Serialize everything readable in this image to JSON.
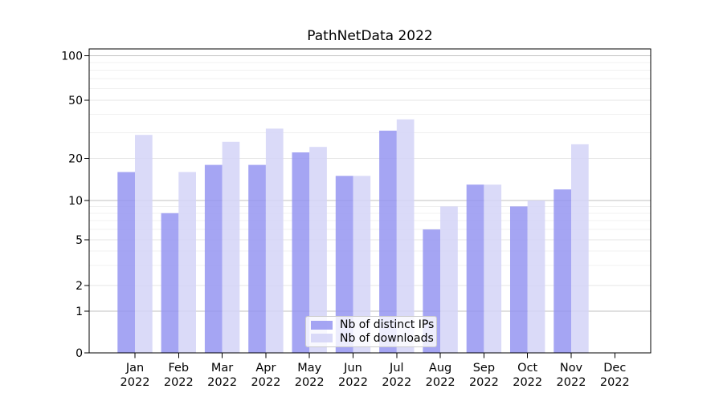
{
  "figure": {
    "title": "PathNetData 2022"
  },
  "chart_data": {
    "type": "bar",
    "title": "PathNetData 2022",
    "months": [
      "Jan",
      "Feb",
      "Mar",
      "Apr",
      "May",
      "Jun",
      "Jul",
      "Aug",
      "Sep",
      "Oct",
      "Nov",
      "Dec"
    ],
    "year_label": "2022",
    "categories": [
      "Jan 2022",
      "Feb 2022",
      "Mar 2022",
      "Apr 2022",
      "May 2022",
      "Jun 2022",
      "Jul 2022",
      "Aug 2022",
      "Sep 2022",
      "Oct 2022",
      "Nov 2022",
      "Dec 2022"
    ],
    "series": [
      {
        "name": "Nb of distinct IPs",
        "color": "#9595f1",
        "fill_alpha": 0.85,
        "values": [
          16,
          8,
          18,
          18,
          22,
          15,
          31,
          6,
          13,
          9,
          12,
          0
        ]
      },
      {
        "name": "Nb of downloads",
        "color": "#d4d4f7",
        "fill_alpha": 0.85,
        "values": [
          29,
          16,
          26,
          32,
          24,
          15,
          37,
          9,
          13,
          10,
          25,
          0
        ]
      }
    ],
    "yscale": "symlog",
    "yticks": [
      0,
      1,
      2,
      5,
      10,
      20,
      50,
      100
    ],
    "ylim": [
      0,
      100
    ],
    "grid": true,
    "legend_position": "lower center",
    "colors": {
      "strong_gridline": "#c2c2c2",
      "soft_gridline": "#e6e6e6",
      "minor_gridline": "#f0f0f0",
      "axis": "#000000"
    }
  }
}
